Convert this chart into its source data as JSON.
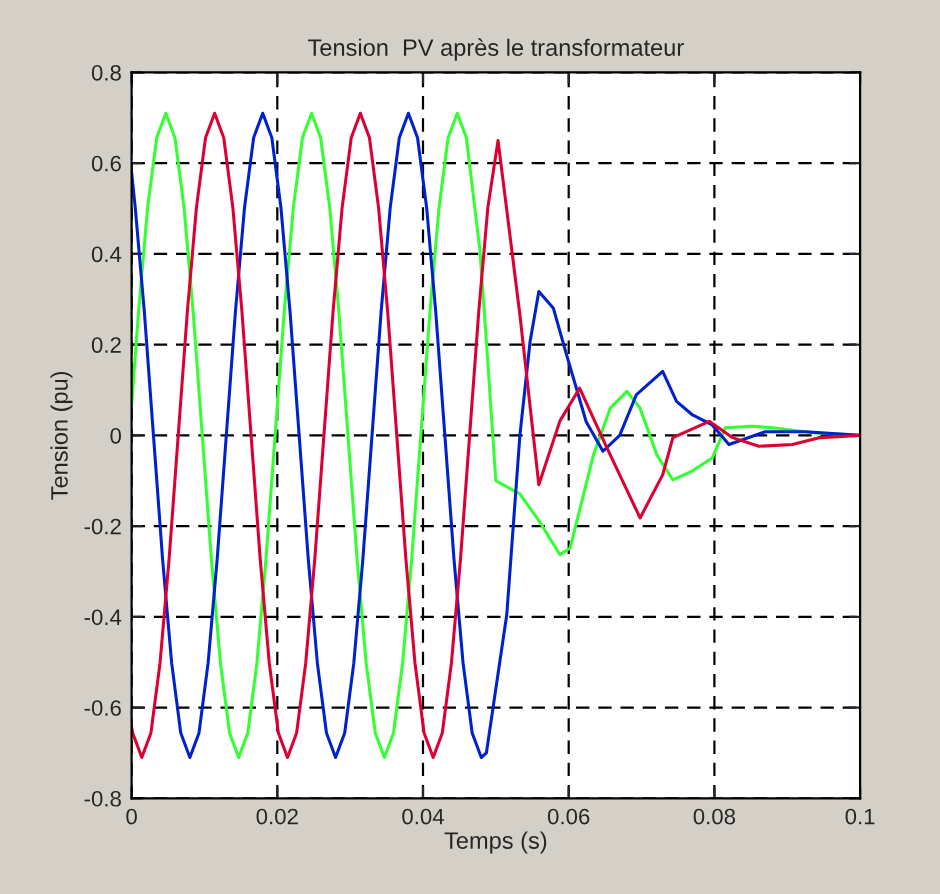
{
  "chart_data": {
    "type": "line",
    "title": "Tension  PV après le transformateur",
    "xlabel": "Temps (s)",
    "ylabel": "Tension (pu)",
    "xlim": [
      0,
      0.1
    ],
    "xticks": [
      0,
      0.02,
      0.04,
      0.06,
      0.08,
      0.1
    ],
    "ylim": [
      -0.8,
      0.8
    ],
    "yticks": [
      -0.8,
      -0.6,
      -0.4,
      -0.2,
      0,
      0.2,
      0.4,
      0.6,
      0.8
    ],
    "grid": true,
    "line_style": "solid",
    "marker": "none",
    "series": [
      {
        "color": "#33ff33",
        "x": [
          0,
          0.00095,
          0.0022,
          0.00345,
          0.0047,
          0.00595,
          0.0072,
          0.00845,
          0.0097,
          0.01095,
          0.0122,
          0.01345,
          0.0147,
          0.01595,
          0.0172,
          0.01845,
          0.0197,
          0.02095,
          0.0222,
          0.02345,
          0.0247,
          0.02595,
          0.0272,
          0.02845,
          0.0297,
          0.03095,
          0.0322,
          0.03345,
          0.0347,
          0.03595,
          0.0372,
          0.03845,
          0.0397,
          0.04095,
          0.0422,
          0.04345,
          0.0447,
          0.04595,
          0.0478,
          0.0487,
          0.05,
          0.0533,
          0.056,
          0.0588,
          0.0602,
          0.0634,
          0.0657,
          0.068,
          0.0698,
          0.0721,
          0.0743,
          0.077,
          0.0797,
          0.0815,
          0.0852,
          0.088,
          0.0935,
          0.1
        ],
        "values": [
          0.067,
          0.272,
          0.502,
          0.656,
          0.71,
          0.656,
          0.502,
          0.272,
          0,
          -0.272,
          -0.502,
          -0.656,
          -0.71,
          -0.656,
          -0.502,
          -0.272,
          0,
          0.272,
          0.502,
          0.656,
          0.71,
          0.656,
          0.502,
          0.272,
          0,
          -0.272,
          -0.502,
          -0.656,
          -0.71,
          -0.656,
          -0.502,
          -0.272,
          0,
          0.272,
          0.502,
          0.656,
          0.71,
          0.656,
          0.41,
          0.207,
          -0.1,
          -0.129,
          -0.19,
          -0.263,
          -0.248,
          -0.043,
          0.06,
          0.097,
          0.06,
          -0.043,
          -0.098,
          -0.078,
          -0.05,
          0.017,
          0.02,
          0.017,
          0.006,
          0
        ]
      },
      {
        "color": "#0022cc",
        "x": [
          0,
          0.0005,
          0.00175,
          0.003,
          0.00425,
          0.0055,
          0.00675,
          0.008,
          0.00925,
          0.0105,
          0.01175,
          0.013,
          0.01425,
          0.0155,
          0.01675,
          0.018,
          0.01925,
          0.0205,
          0.02175,
          0.023,
          0.02425,
          0.0255,
          0.02675,
          0.028,
          0.02925,
          0.0305,
          0.03175,
          0.033,
          0.03425,
          0.0355,
          0.03675,
          0.038,
          0.03925,
          0.0405,
          0.04175,
          0.043,
          0.04425,
          0.0455,
          0.04675,
          0.048,
          0.0487,
          0.0515,
          0.0533,
          0.0547,
          0.0559,
          0.0579,
          0.0597,
          0.0624,
          0.0647,
          0.067,
          0.0693,
          0.0729,
          0.0748,
          0.077,
          0.0797,
          0.082,
          0.087,
          0.0925,
          0.1
        ],
        "values": [
          0.58,
          0.502,
          0.272,
          0,
          -0.272,
          -0.502,
          -0.656,
          -0.71,
          -0.656,
          -0.502,
          -0.272,
          0,
          0.272,
          0.502,
          0.656,
          0.71,
          0.656,
          0.502,
          0.272,
          0,
          -0.272,
          -0.502,
          -0.656,
          -0.71,
          -0.656,
          -0.502,
          -0.272,
          0,
          0.272,
          0.502,
          0.656,
          0.71,
          0.656,
          0.502,
          0.272,
          0,
          -0.272,
          -0.502,
          -0.656,
          -0.71,
          -0.7,
          -0.395,
          0,
          0.207,
          0.317,
          0.28,
          0.178,
          0.03,
          -0.035,
          0,
          0.09,
          0.141,
          0.075,
          0.045,
          0.023,
          -0.02,
          0.008,
          0.008,
          0
        ]
      },
      {
        "color": "#dd0033",
        "x": [
          0,
          0.00015,
          0.0014,
          0.00265,
          0.0039,
          0.00515,
          0.0064,
          0.00765,
          0.0089,
          0.01015,
          0.0114,
          0.01265,
          0.0139,
          0.01515,
          0.0164,
          0.01765,
          0.0189,
          0.02015,
          0.0214,
          0.02265,
          0.0239,
          0.02515,
          0.0264,
          0.02765,
          0.0289,
          0.03015,
          0.0314,
          0.03265,
          0.0339,
          0.03515,
          0.0364,
          0.03765,
          0.0389,
          0.04015,
          0.0414,
          0.04265,
          0.0439,
          0.04515,
          0.0464,
          0.04765,
          0.0489,
          0.0503,
          0.0533,
          0.0559,
          0.0588,
          0.0615,
          0.0652,
          0.0698,
          0.0729,
          0.0743,
          0.0793,
          0.0825,
          0.0861,
          0.0907,
          0.0944,
          0.1
        ],
        "values": [
          -0.643,
          -0.656,
          -0.71,
          -0.656,
          -0.502,
          -0.272,
          0,
          0.272,
          0.502,
          0.656,
          0.71,
          0.656,
          0.502,
          0.272,
          0,
          -0.272,
          -0.502,
          -0.656,
          -0.71,
          -0.656,
          -0.502,
          -0.272,
          0,
          0.272,
          0.502,
          0.656,
          0.71,
          0.656,
          0.502,
          0.272,
          0,
          -0.272,
          -0.502,
          -0.656,
          -0.71,
          -0.656,
          -0.502,
          -0.272,
          0,
          0.272,
          0.502,
          0.65,
          0.266,
          -0.109,
          0.032,
          0.104,
          -0.026,
          -0.182,
          -0.087,
          -0.005,
          0.031,
          -0.005,
          -0.024,
          -0.02,
          -0.005,
          0
        ]
      }
    ]
  }
}
